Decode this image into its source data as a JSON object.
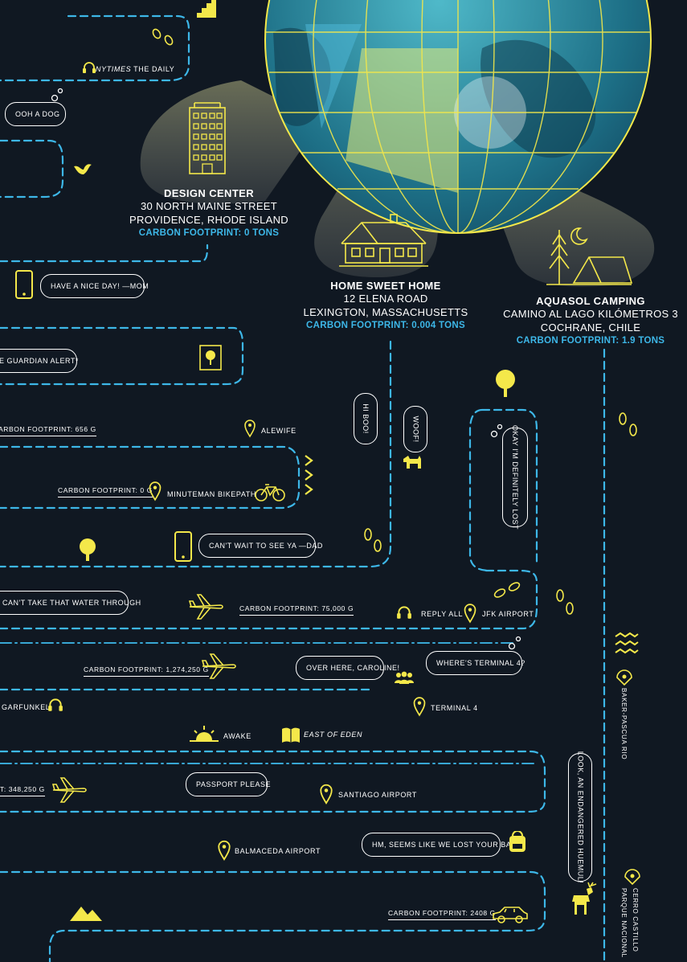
{
  "locations": {
    "design": {
      "name": "DESIGN CENTER",
      "line1": "30 NORTH MAINE STREET",
      "line2": "PROVIDENCE, RHODE ISLAND",
      "carbon": "CARBON FOOTPRINT: 0 TONS"
    },
    "home": {
      "name": "HOME SWEET HOME",
      "line1": "12 ELENA ROAD",
      "line2": "LEXINGTON, MASSACHUSETTS",
      "carbon": "CARBON FOOTPRINT: 0.004 TONS"
    },
    "camping": {
      "name": "AQUASOL CAMPING",
      "line1": "CAMINO AL LAGO KILÓMETROS 3",
      "line2": "COCHRANE, CHILE",
      "carbon": "CARBON FOOTPRINT: 1.9 TONS"
    }
  },
  "bubbles": {
    "dog": "OOH A DOG",
    "mom": "HAVE A NICE DAY! —MOM",
    "guardian": "E GUARDIAN ALERT*",
    "hiboo": "HI BOO!",
    "woof": "WOOF!",
    "lost": "OKAY I'M DEFINITELY LOST",
    "dad": "CAN'T WAIT TO SEE YA —DAD",
    "water": "U CAN'T TAKE THAT WATER THROUGH",
    "caroline": "OVER HERE, CAROLINE!",
    "terminal": "WHERE'S TERMINAL 4?",
    "passport": "PASSPORT PLEASE",
    "bag": "HM, SEEMS LIKE WE LOST YOUR BAG",
    "huemul": "LOOK, AN ENDANGERED HUEMUL!"
  },
  "labels": {
    "nytimes_em": "NYTIMES",
    "nytimes_rest": " THE DAILY",
    "alewife": "ALEWIFE",
    "minuteman": "MINUTEMAN BIKEPATH",
    "replyall": "REPLY ALL",
    "jfk": "JFK AIRPORT",
    "garfunkel": "GARFUNKEL",
    "terminal4": "TERMINAL 4",
    "awake": "AWAKE",
    "eden": "EAST OF EDEN",
    "santiago": "SANTIAGO AIRPORT",
    "balmaceda": "BALMACEDA AIRPORT",
    "baker": "BAKER-PASCUA RIO",
    "cerro": "CERRO CASTILLO",
    "parque": "PARQUE NACIONAL"
  },
  "footprints": {
    "f656": "ARBON FOOTPRINT: 656 G",
    "f0": "CARBON FOOTPRINT: 0 G",
    "f75000": "CARBON FOOTPRINT: 75,000 G",
    "f1274250": "CARBON FOOTPRINT: 1,274,250 G",
    "f348250": "T: 348,250 G",
    "f2408": "CARBON FOOTPRINT: 2408 G"
  },
  "colors": {
    "background": "#101822",
    "route": "#3db7e8",
    "icon": "#f4e84a",
    "text": "#ffffff",
    "carbon": "#3db7e8"
  }
}
